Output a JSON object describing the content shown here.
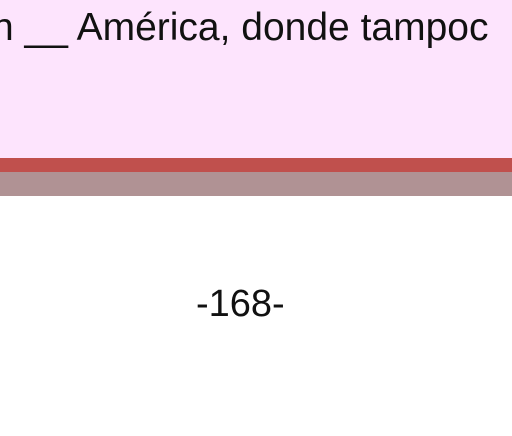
{
  "document": {
    "text_line": "n __  América, donde tampoc",
    "page_number": "-168-"
  },
  "colors": {
    "panel_background": "#fde4fd",
    "accent_band": "#c0504d",
    "secondary_band": "#b09294",
    "page_background": "#ffffff"
  }
}
